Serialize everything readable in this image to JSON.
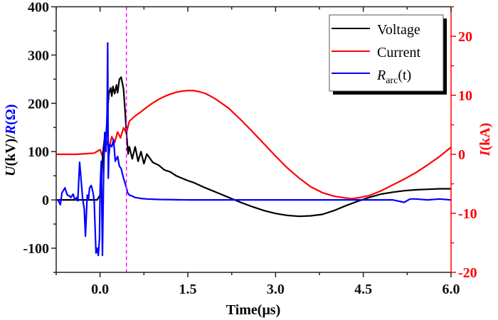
{
  "chart_data": {
    "type": "line",
    "title": "",
    "xlabel": "Time(μs)",
    "ylabel_left": {
      "part1": "U",
      "part2": "(kV)/",
      "part3": "R",
      "part4": "(Ω)"
    },
    "ylabel_right": {
      "part1": "I",
      "part2": "(kA)"
    },
    "xlim": [
      -0.75,
      6.0
    ],
    "ylim_left": [
      -150,
      400
    ],
    "ylim_right": [
      -20,
      25
    ],
    "x_ticks": [
      0.0,
      1.5,
      3.0,
      4.5,
      6.0
    ],
    "x_tick_labels": [
      "0.0",
      "1.5",
      "3.0",
      "4.5",
      "6.0"
    ],
    "y_left_ticks": [
      -100,
      0,
      100,
      200,
      300,
      400
    ],
    "y_left_tick_labels": [
      "-100",
      "0",
      "100",
      "200",
      "300",
      "400"
    ],
    "y_right_ticks": [
      -20,
      -10,
      0,
      10,
      20
    ],
    "y_right_tick_labels": [
      "-20",
      "-10",
      "0",
      "10",
      "20"
    ],
    "grid": false,
    "legend_position": "top-right",
    "marker_line": {
      "x": 0.45,
      "color": "#ff00ff",
      "style": "dashed"
    },
    "colors": {
      "voltage": "#000000",
      "current": "#ff0000",
      "resistance": "#0000ff",
      "right_axis": "#ff0000"
    },
    "series": [
      {
        "name": "Voltage",
        "axis": "left",
        "color": "#000000",
        "x": [
          -0.75,
          -0.6,
          -0.4,
          -0.2,
          -0.05,
          0.0,
          0.02,
          0.05,
          0.08,
          0.1,
          0.12,
          0.15,
          0.18,
          0.2,
          0.22,
          0.25,
          0.28,
          0.3,
          0.33,
          0.36,
          0.4,
          0.43,
          0.45,
          0.48,
          0.5,
          0.55,
          0.6,
          0.65,
          0.7,
          0.75,
          0.8,
          0.9,
          1.0,
          1.1,
          1.2,
          1.3,
          1.4,
          1.5,
          1.6,
          1.8,
          2.0,
          2.2,
          2.4,
          2.6,
          2.8,
          3.0,
          3.2,
          3.4,
          3.6,
          3.8,
          4.0,
          4.2,
          4.4,
          4.6,
          4.8,
          5.0,
          5.2,
          5.4,
          5.6,
          5.8,
          6.0
        ],
        "y": [
          0,
          0,
          0,
          0,
          0,
          10,
          40,
          100,
          130,
          120,
          170,
          220,
          232,
          215,
          235,
          220,
          238,
          222,
          250,
          254,
          230,
          180,
          140,
          95,
          110,
          85,
          110,
          80,
          100,
          75,
          95,
          78,
          72,
          62,
          58,
          50,
          45,
          40,
          36,
          25,
          15,
          5,
          -5,
          -14,
          -22,
          -28,
          -32,
          -34,
          -33,
          -30,
          -22,
          -12,
          -3,
          5,
          12,
          16,
          19,
          21,
          22,
          23,
          23
        ]
      },
      {
        "name": "Current",
        "axis": "right",
        "color": "#ff0000",
        "x": [
          -0.75,
          -0.4,
          -0.1,
          0.0,
          0.05,
          0.1,
          0.15,
          0.2,
          0.25,
          0.3,
          0.35,
          0.4,
          0.45,
          0.5,
          0.6,
          0.7,
          0.8,
          0.9,
          1.0,
          1.1,
          1.2,
          1.3,
          1.4,
          1.5,
          1.6,
          1.7,
          1.8,
          1.9,
          2.0,
          2.2,
          2.4,
          2.6,
          2.8,
          3.0,
          3.2,
          3.4,
          3.6,
          3.8,
          4.0,
          4.2,
          4.3,
          4.4,
          4.6,
          4.8,
          5.0,
          5.2,
          5.4,
          5.6,
          5.8,
          6.0
        ],
        "y": [
          0,
          0,
          0.2,
          0.8,
          -0.6,
          2.5,
          1.0,
          3.0,
          2.0,
          3.8,
          2.8,
          4.5,
          3.6,
          5.6,
          6.5,
          7.2,
          8.0,
          8.7,
          9.3,
          9.8,
          10.2,
          10.5,
          10.7,
          10.8,
          10.8,
          10.6,
          10.3,
          9.8,
          9.2,
          7.8,
          5.9,
          3.9,
          1.8,
          -0.3,
          -2.3,
          -4.0,
          -5.5,
          -6.5,
          -7.1,
          -7.4,
          -7.5,
          -7.4,
          -7.0,
          -6.2,
          -5.2,
          -4.2,
          -3.1,
          -1.8,
          -0.4,
          1.2
        ]
      },
      {
        "name": "Rarc(t)",
        "axis": "left",
        "color": "#0000ff",
        "x": [
          -0.75,
          -0.72,
          -0.68,
          -0.65,
          -0.6,
          -0.56,
          -0.52,
          -0.5,
          -0.46,
          -0.43,
          -0.4,
          -0.38,
          -0.35,
          -0.32,
          -0.3,
          -0.27,
          -0.25,
          -0.22,
          -0.2,
          -0.18,
          -0.15,
          -0.12,
          -0.1,
          -0.07,
          -0.05,
          -0.03,
          -0.01,
          0.0,
          0.02,
          0.04,
          0.06,
          0.08,
          0.1,
          0.12,
          0.13,
          0.14,
          0.15,
          0.17,
          0.2,
          0.23,
          0.26,
          0.3,
          0.33,
          0.36,
          0.4,
          0.44,
          0.47,
          0.5,
          0.55,
          0.6,
          0.7,
          0.8,
          1.0,
          1.5,
          2.0,
          2.5,
          3.0,
          3.5,
          4.0,
          4.5,
          5.0,
          5.2,
          5.3,
          5.4,
          5.6,
          5.8,
          6.0
        ],
        "y": [
          0,
          0,
          -10,
          15,
          25,
          10,
          8,
          5,
          12,
          0,
          5,
          -2,
          78,
          35,
          5,
          -20,
          -75,
          10,
          0,
          25,
          30,
          15,
          -2,
          -110,
          -100,
          -115,
          -80,
          20,
          80,
          -115,
          50,
          140,
          100,
          180,
          325,
          45,
          90,
          115,
          110,
          125,
          80,
          90,
          70,
          65,
          45,
          30,
          15,
          10,
          8,
          5,
          3,
          2,
          1,
          0,
          0,
          0,
          0,
          0,
          0,
          0,
          0,
          -5,
          2,
          2,
          0,
          2,
          0
        ]
      }
    ],
    "legend": [
      {
        "label": "Voltage",
        "color": "#000000"
      },
      {
        "label": "Current",
        "color": "#ff0000"
      },
      {
        "label_main": "R",
        "label_sub": "arc",
        "label_tail": "(t)",
        "color": "#0000ff"
      }
    ]
  }
}
